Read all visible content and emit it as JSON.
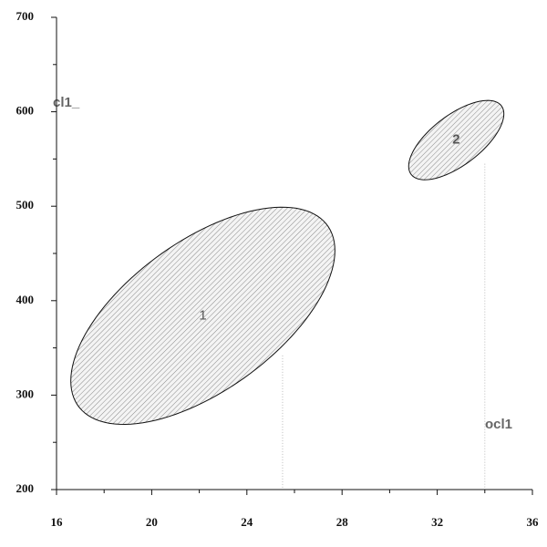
{
  "chart_data": {
    "type": "ellipse",
    "x_label": "ocl1",
    "y_label": "cl1_",
    "xlim": [
      16,
      36
    ],
    "ylim": [
      200,
      700
    ],
    "xticks": [
      16,
      20,
      24,
      28,
      32,
      36
    ],
    "yticks": [
      200,
      300,
      400,
      500,
      600,
      700
    ],
    "xminor": [
      18,
      22,
      26,
      30,
      34
    ],
    "yminor": [
      250,
      350,
      450,
      550,
      650
    ],
    "series": [
      {
        "name": "1",
        "x": 22.15,
        "y": 384,
        "sd_x": 5.55,
        "sd_y": 115,
        "r": 0.6
      },
      {
        "name": "2",
        "x": 32.8,
        "y": 570,
        "sd_x": 2.0,
        "sd_y": 42,
        "r": 0.66
      }
    ],
    "drop_lines": [
      {
        "x": 25.5,
        "y": 342
      },
      {
        "x": 34,
        "y": 545
      }
    ]
  }
}
